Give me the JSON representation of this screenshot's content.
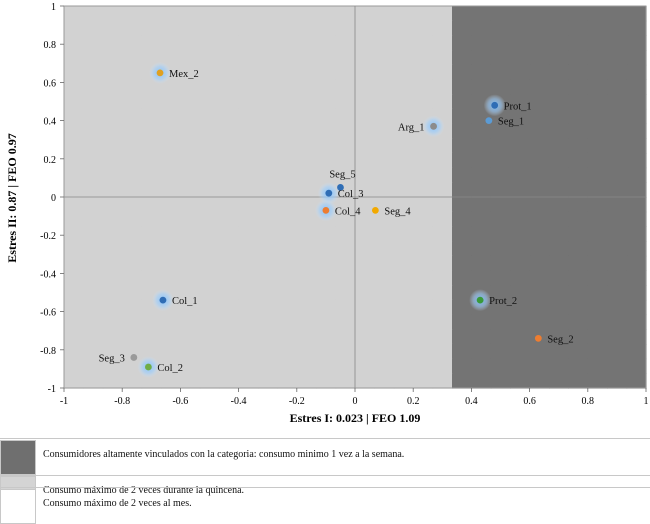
{
  "chart_data": {
    "type": "scatter",
    "title": "",
    "xlabel": "Estres I: 0.023 | FEO 1.09",
    "ylabel": "Estres II:  0.87 | FEO 0.97",
    "xlim": [
      -1,
      1
    ],
    "ylim": [
      -1,
      1
    ],
    "x_ticks": [
      "-1",
      "-0.8",
      "-0.6",
      "-0.4",
      "-0.2",
      "0",
      "0.2",
      "0.4",
      "0.6",
      "0.8",
      "1"
    ],
    "y_ticks": [
      "1",
      "0.8",
      "0.6",
      "0.4",
      "0.2",
      "0",
      "-0.2",
      "-0.4",
      "-0.6",
      "-0.8",
      "-1"
    ],
    "grid_rows": [
      "000000000000000000002222222222",
      "000000000000000000002222222222",
      "000000000000000000002222222222",
      "000000000000000000002222222222",
      "000000000000000000002222222222",
      "000000000000000000002222222222",
      "000000000000000000002222222222",
      "000000000000000000002222222222",
      "000000000000000000002222222222",
      "000000000000000000002222222222",
      "000000000000000000002222222222",
      "000000000000000000002222222222",
      "000000000000000000002222222222",
      "000000000000000000002222222222",
      "000000000000000000002222222222",
      "000000000000000000002222222222",
      "000000000000000000002222222222",
      "000000000000000000002222222222",
      "000000000000000000002222222222",
      "000000000000000000002222222222",
      "000000000000000000002222222222",
      "000000000000000000002222222222",
      "000000000000000000002222222222",
      "000000000000000000002222222222",
      "000000000000000000002222222222",
      "000000000000000000002222222222"
    ],
    "points": [
      {
        "name": "Mex_2",
        "x": -0.67,
        "y": 0.65,
        "color": "#e0a020",
        "halo": true,
        "label_side": "right"
      },
      {
        "name": "Prot_1",
        "x": 0.48,
        "y": 0.48,
        "color": "#2f6db5",
        "halo": true,
        "label_side": "right"
      },
      {
        "name": "Seg_1",
        "x": 0.46,
        "y": 0.4,
        "color": "#5b9bd5",
        "halo": false,
        "label_side": "right"
      },
      {
        "name": "Arg_1",
        "x": 0.27,
        "y": 0.37,
        "color": "#8c8c8c",
        "halo": true,
        "label_side": "left"
      },
      {
        "name": "Seg_5",
        "x": -0.05,
        "y": 0.05,
        "color": "#2f6db5",
        "halo": false,
        "label_side": "above"
      },
      {
        "name": "Col_3",
        "x": -0.09,
        "y": 0.02,
        "color": "#2f6db5",
        "halo": true,
        "label_side": "right"
      },
      {
        "name": "Col_4",
        "x": -0.1,
        "y": -0.07,
        "color": "#ed7d31",
        "halo": true,
        "label_side": "right"
      },
      {
        "name": "Seg_4",
        "x": 0.07,
        "y": -0.07,
        "color": "#f2a900",
        "halo": false,
        "label_side": "right"
      },
      {
        "name": "Col_1",
        "x": -0.66,
        "y": -0.54,
        "color": "#2f6db5",
        "halo": true,
        "label_side": "right"
      },
      {
        "name": "Prot_2",
        "x": 0.43,
        "y": -0.54,
        "color": "#3a9a3a",
        "halo": true,
        "label_side": "right"
      },
      {
        "name": "Seg_2",
        "x": 0.63,
        "y": -0.74,
        "color": "#ed7d31",
        "halo": false,
        "label_side": "right"
      },
      {
        "name": "Seg_3",
        "x": -0.76,
        "y": -0.84,
        "color": "#9a9a9a",
        "halo": false,
        "label_side": "left"
      },
      {
        "name": "Col_2",
        "x": -0.71,
        "y": -0.89,
        "color": "#70ad47",
        "halo": true,
        "label_side": "right"
      }
    ]
  },
  "legend": [
    {
      "label": "Consumidores altamente vinculados con la categoria: consumo minimo 1 vez a la semana.",
      "color": "#6f6f6f"
    },
    {
      "label": "Consumo máximo de 2 veces durante la quincena.",
      "color": "#d4d4d4"
    },
    {
      "label": "Consumo máximo de 2 veces al mes.",
      "color": "#ffffff"
    }
  ],
  "colors": {
    "dark": "#747474",
    "mid": "#d2d2d2",
    "light": "#e9e9e9",
    "white": "#ffffff",
    "axis": "#888888"
  }
}
